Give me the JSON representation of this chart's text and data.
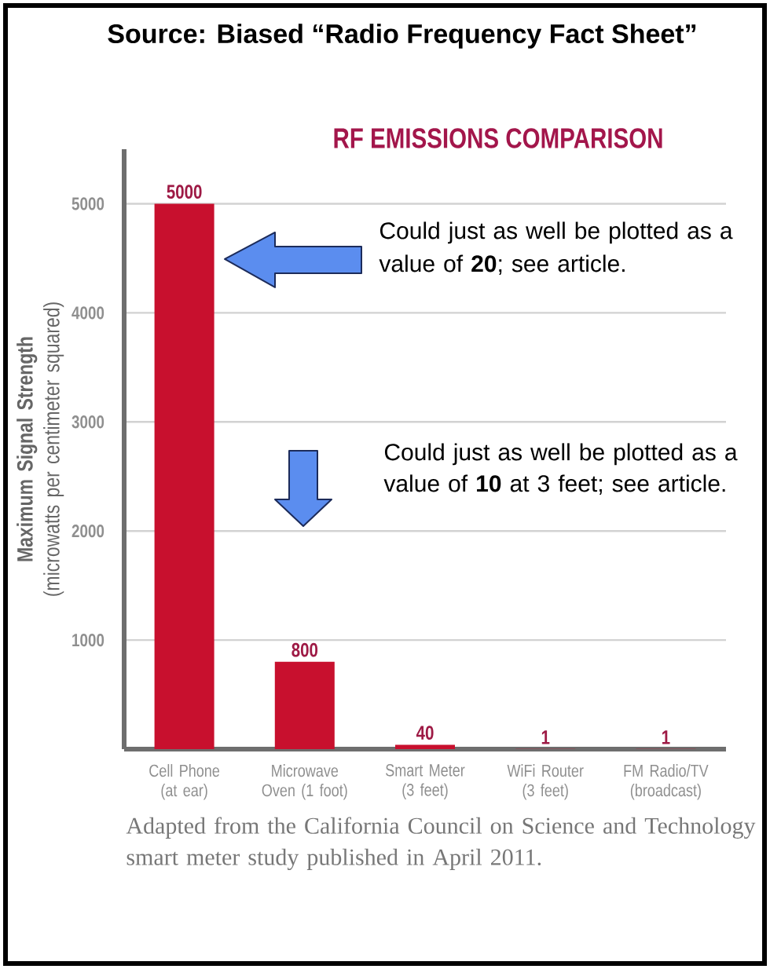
{
  "chart_data": {
    "type": "bar",
    "title": "RF EMISSIONS COMPARISON",
    "ylabel": "**Maximum Signal Strength** (microwatts per centimeter squared)",
    "categories": [
      "Cell Phone (at ear)",
      "Microwave Oven (1 foot)",
      "Smart Meter (3 feet)",
      "WiFi Router (3 feet)",
      "FM Radio/TV (broadcast)"
    ],
    "values": [
      5000,
      800,
      40,
      1,
      1
    ],
    "color": "#c8102e",
    "data_labels": true,
    "ylim": [
      0,
      5500
    ],
    "yticks": [
      1000,
      2000,
      3000,
      4000,
      5000
    ],
    "grid": "y",
    "annotations": [
      "Source: Biased “Radio Frequency Fact Sheet”",
      "Could just as well be plotted as a value of **20**; see article.",
      "Could just as well be plotted as a value of **10** at 3 feet; see article.",
      "Adapted from the California Council on Science and Technology smart meter study published in April 2011."
    ]
  }
}
